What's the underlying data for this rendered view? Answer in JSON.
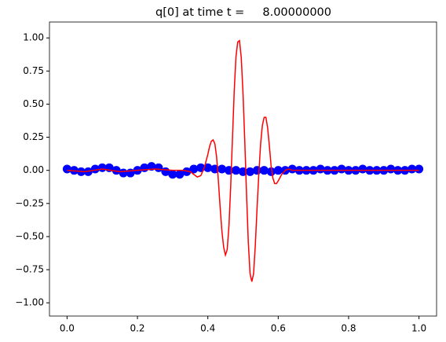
{
  "chart_data": {
    "type": "line",
    "title": "q[0] at time t =     8.00000000",
    "xlim": [
      -0.05,
      1.05
    ],
    "ylim": [
      -1.1,
      1.12
    ],
    "xticks": [
      {
        "value": 0,
        "label": "0.0"
      },
      {
        "value": 0.2,
        "label": "0.2"
      },
      {
        "value": 0.4,
        "label": "0.4"
      },
      {
        "value": 0.6,
        "label": "0.6"
      },
      {
        "value": 0.8,
        "label": "0.8"
      },
      {
        "value": 1,
        "label": "1.0"
      }
    ],
    "yticks": [
      {
        "value": -1,
        "label": "−1.00"
      },
      {
        "value": -0.75,
        "label": "−0.75"
      },
      {
        "value": -0.5,
        "label": "−0.50"
      },
      {
        "value": -0.25,
        "label": "−0.25"
      },
      {
        "value": 0,
        "label": "0.00"
      },
      {
        "value": 0.25,
        "label": "0.25"
      },
      {
        "value": 0.5,
        "label": "0.50"
      },
      {
        "value": 0.75,
        "label": "0.75"
      },
      {
        "value": 1,
        "label": "1.00"
      }
    ],
    "series": [
      {
        "style": "markers",
        "color": "#0000ff",
        "x": [
          0,
          0.02,
          0.04,
          0.06,
          0.08,
          0.1,
          0.12,
          0.14,
          0.16,
          0.18,
          0.2,
          0.22,
          0.24,
          0.26,
          0.28,
          0.3,
          0.32,
          0.34,
          0.36,
          0.38,
          0.4,
          0.42,
          0.44,
          0.46,
          0.48,
          0.5,
          0.52,
          0.54,
          0.56,
          0.58,
          0.6,
          0.62,
          0.64,
          0.66,
          0.68,
          0.7,
          0.72,
          0.74,
          0.76,
          0.78,
          0.8,
          0.82,
          0.84,
          0.86,
          0.88,
          0.9,
          0.92,
          0.94,
          0.96,
          0.98,
          1
        ],
        "values": [
          0.01,
          0,
          -0.01,
          -0.01,
          0.01,
          0.02,
          0.02,
          0,
          -0.02,
          -0.02,
          0,
          0.02,
          0.03,
          0.02,
          -0.01,
          -0.03,
          -0.03,
          -0.01,
          0.01,
          0.02,
          0.02,
          0.01,
          0.01,
          0,
          0,
          -0.01,
          -0.01,
          0,
          0,
          -0.01,
          0,
          0,
          0.01,
          0,
          0,
          0,
          0.01,
          0,
          0,
          0.01,
          0,
          0,
          0.01,
          0,
          0,
          0,
          0.01,
          0,
          0,
          0.01,
          0.01
        ]
      },
      {
        "style": "line",
        "color": "#ff0000",
        "x": [
          0,
          0.05,
          0.1,
          0.15,
          0.2,
          0.25,
          0.3,
          0.33,
          0.35,
          0.36,
          0.37,
          0.38,
          0.39,
          0.4,
          0.405,
          0.41,
          0.415,
          0.42,
          0.425,
          0.43,
          0.435,
          0.44,
          0.445,
          0.45,
          0.455,
          0.46,
          0.465,
          0.47,
          0.475,
          0.48,
          0.485,
          0.49,
          0.495,
          0.5,
          0.505,
          0.51,
          0.515,
          0.52,
          0.525,
          0.53,
          0.535,
          0.54,
          0.545,
          0.55,
          0.555,
          0.56,
          0.565,
          0.57,
          0.575,
          0.58,
          0.585,
          0.59,
          0.595,
          0.6,
          0.61,
          0.62,
          0.63,
          0.64,
          0.7,
          0.8,
          0.9,
          1
        ],
        "values": [
          0,
          -0.01,
          0.01,
          -0.01,
          0,
          0.01,
          0,
          0,
          -0.01,
          -0.03,
          -0.05,
          -0.04,
          0.02,
          0.12,
          0.18,
          0.22,
          0.23,
          0.2,
          0.1,
          -0.08,
          -0.28,
          -0.46,
          -0.58,
          -0.64,
          -0.6,
          -0.42,
          -0.12,
          0.24,
          0.6,
          0.86,
          0.97,
          0.98,
          0.85,
          0.58,
          0.22,
          -0.18,
          -0.54,
          -0.78,
          -0.84,
          -0.78,
          -0.56,
          -0.28,
          -0.02,
          0.2,
          0.34,
          0.4,
          0.4,
          0.32,
          0.18,
          0.03,
          -0.06,
          -0.1,
          -0.1,
          -0.08,
          -0.03,
          0,
          0.01,
          0,
          0,
          0,
          0,
          0
        ]
      }
    ]
  }
}
